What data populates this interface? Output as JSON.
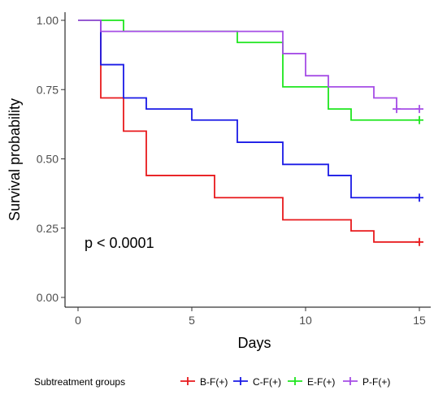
{
  "chart_data": {
    "type": "line",
    "subtype": "kaplan-meier",
    "title": "",
    "xlabel": "Days",
    "ylabel": "Survival probability",
    "xlim": [
      0,
      15
    ],
    "ylim": [
      0,
      1
    ],
    "x_ticks": [
      0,
      5,
      10,
      15
    ],
    "x_tick_labels": [
      "0",
      "5",
      "10",
      "15"
    ],
    "y_ticks": [
      0,
      0.25,
      0.5,
      0.75,
      1
    ],
    "y_tick_labels": [
      "0.00",
      "0.25",
      "0.50",
      "0.75",
      "1.00"
    ],
    "grid": false,
    "annotation": "p < 0.0001",
    "legend": {
      "title": "Subtreatment groups",
      "position": "bottom",
      "entries": [
        "B-F(+)",
        "C-F(+)",
        "E-F(+)",
        "P-F(+)"
      ]
    },
    "series": [
      {
        "name": "B-F(+)",
        "color": "#e8191c",
        "steps": [
          [
            0,
            1.0
          ],
          [
            1,
            0.72
          ],
          [
            2,
            0.6
          ],
          [
            3,
            0.44
          ],
          [
            6,
            0.36
          ],
          [
            9,
            0.28
          ],
          [
            12,
            0.24
          ],
          [
            13,
            0.2
          ],
          [
            15,
            0.2
          ]
        ],
        "censor": [
          [
            15,
            0.2
          ]
        ]
      },
      {
        "name": "C-F(+)",
        "color": "#1a1ae6",
        "steps": [
          [
            0,
            1.0
          ],
          [
            1,
            0.84
          ],
          [
            2,
            0.72
          ],
          [
            3,
            0.68
          ],
          [
            5,
            0.64
          ],
          [
            7,
            0.56
          ],
          [
            9,
            0.48
          ],
          [
            11,
            0.44
          ],
          [
            12,
            0.36
          ],
          [
            15,
            0.36
          ]
        ],
        "censor": [
          [
            15,
            0.36
          ]
        ]
      },
      {
        "name": "E-F(+)",
        "color": "#1ee61e",
        "steps": [
          [
            0,
            1.0
          ],
          [
            2,
            0.96
          ],
          [
            7,
            0.92
          ],
          [
            9,
            0.76
          ],
          [
            11,
            0.68
          ],
          [
            12,
            0.64
          ],
          [
            15,
            0.64
          ]
        ],
        "censor": [
          [
            15,
            0.64
          ]
        ]
      },
      {
        "name": "P-F(+)",
        "color": "#a64de6",
        "steps": [
          [
            0,
            1.0
          ],
          [
            1,
            0.96
          ],
          [
            9,
            0.88
          ],
          [
            10,
            0.8
          ],
          [
            11,
            0.76
          ],
          [
            13,
            0.72
          ],
          [
            14,
            0.68
          ],
          [
            15,
            0.68
          ]
        ],
        "censor": [
          [
            14,
            0.68
          ],
          [
            15,
            0.68
          ]
        ]
      }
    ]
  }
}
